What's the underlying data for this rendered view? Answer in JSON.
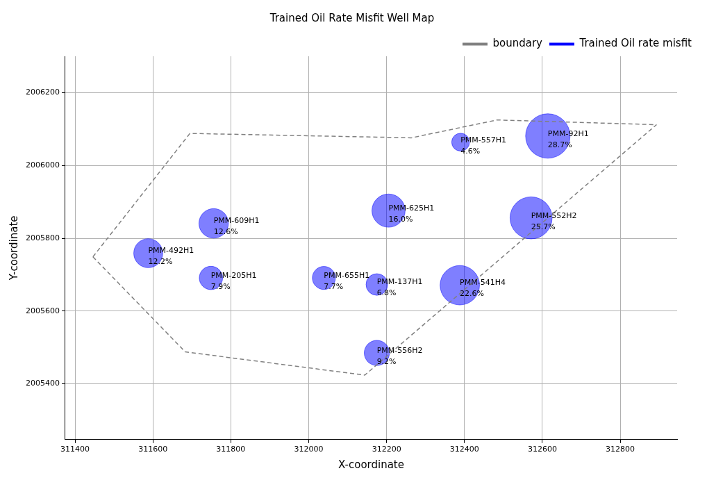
{
  "chart_data": {
    "type": "bubble",
    "title": "Trained Oil Rate Misfit Well Map",
    "xlabel": "X-coordinate",
    "ylabel": "Y-coordinate",
    "xlim": [
      311375,
      312946
    ],
    "ylim": [
      2005247,
      2006300
    ],
    "xticks": [
      311400,
      311600,
      311800,
      312000,
      312200,
      312400,
      312600,
      312800
    ],
    "yticks": [
      2005400,
      2005600,
      2005800,
      2006000,
      2006200
    ],
    "grid": true,
    "legend": "top right",
    "series": [
      {
        "name": "boundary",
        "type": "line",
        "color": "#808080",
        "line_style": "dashed",
        "marker": "none",
        "x": [
          311446,
          311695,
          312264,
          312483,
          312893
        ],
        "values": [
          2005749,
          2006088,
          2006076,
          2006125,
          2006112
        ]
      },
      {
        "type": "line",
        "color": "#808080",
        "line_style": "dashed",
        "marker": "none",
        "x": [
          311446,
          311683,
          312144,
          312893
        ],
        "values": [
          2005749,
          2005488,
          2005424,
          2006112
        ]
      },
      {
        "name": "Trained Oil rate misfit",
        "type": "bubble",
        "color": "#0000ff",
        "x": [
          312614,
          312390,
          312205,
          312571,
          311756,
          311588,
          311749,
          312039,
          312175,
          312388,
          312175
        ],
        "values": [
          2006081,
          2006064,
          2005876,
          2005856,
          2005841,
          2005759,
          2005691,
          2005691,
          2005673,
          2005671,
          2005485
        ],
        "sizes": [
          28.7,
          4.6,
          16.0,
          25.7,
          12.6,
          12.2,
          7.9,
          7.7,
          6.8,
          22.6,
          9.2
        ],
        "value_labels": [
          "28.7%",
          "4.6%",
          "16.0%",
          "25.7%",
          "12.6%",
          "12.2%",
          "7.9%",
          "7.7%",
          "6.8%",
          "22.6%",
          "9.2%"
        ]
      }
    ],
    "annotations": [
      {
        "text": "PMM-92H1",
        "x": 312614,
        "y": 2006081
      },
      {
        "text": "PMM-557H1",
        "x": 312390,
        "y": 2006064
      },
      {
        "text": "PMM-625H1",
        "x": 312205,
        "y": 2005876
      },
      {
        "text": "PMM-552H2",
        "x": 312571,
        "y": 2005856
      },
      {
        "text": "PMM-609H1",
        "x": 311756,
        "y": 2005841
      },
      {
        "text": "PMM-492H1",
        "x": 311588,
        "y": 2005759
      },
      {
        "text": "PMM-205H1",
        "x": 311749,
        "y": 2005691
      },
      {
        "text": "PMM-655H1",
        "x": 312039,
        "y": 2005691
      },
      {
        "text": "PMM-137H1",
        "x": 312175,
        "y": 2005673
      },
      {
        "text": "PMM-541H4",
        "x": 312388,
        "y": 2005671
      },
      {
        "text": "PMM-556H2",
        "x": 312175,
        "y": 2005485
      }
    ]
  }
}
